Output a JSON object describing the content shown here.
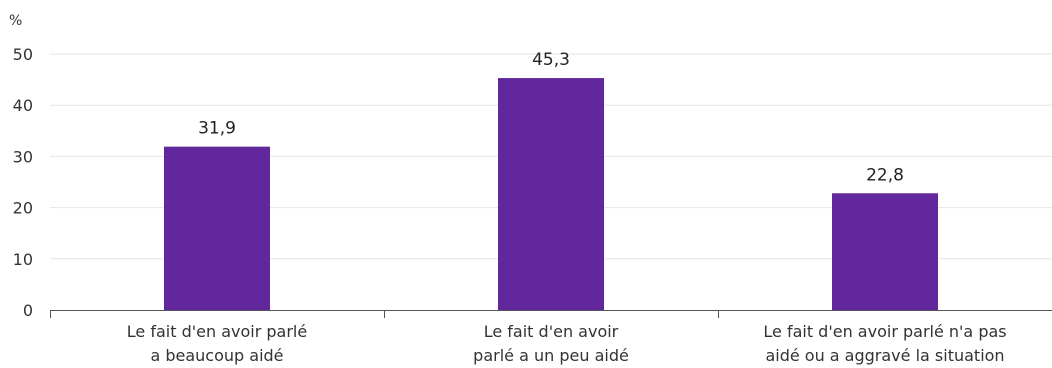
{
  "chart_data": {
    "type": "bar",
    "ylabel": "%",
    "ylim": [
      0,
      50
    ],
    "yticks": [
      0,
      10,
      20,
      30,
      40,
      50
    ],
    "grid": true,
    "legend": "none",
    "categories": [
      [
        "Le fait d'en avoir parlé",
        "a beaucoup aidé"
      ],
      [
        "Le fait d'en avoir",
        "parlé a un peu aidé"
      ],
      [
        "Le fait d'en avoir parlé n'a pas",
        "aidé ou a aggravé la situation"
      ]
    ],
    "values": [
      31.9,
      45.3,
      22.8
    ],
    "value_labels": [
      "31,9",
      "45,3",
      "22,8"
    ],
    "colors": {
      "bar": "#62279c",
      "grid": "#e6e6e6",
      "axis": "#555555"
    }
  }
}
